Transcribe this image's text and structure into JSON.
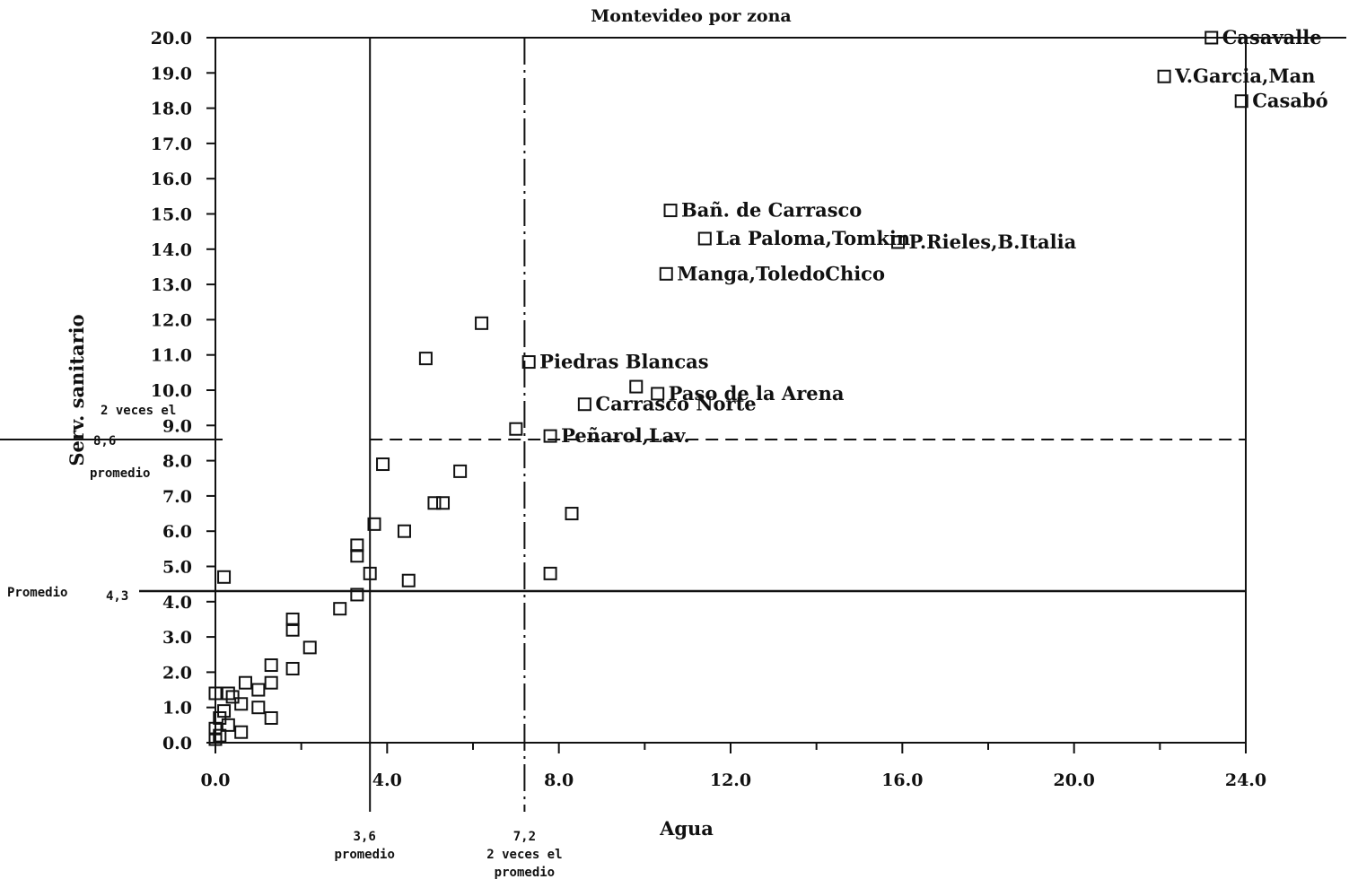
{
  "chart_data": {
    "type": "scatter",
    "title": "Montevideo por zona",
    "xlabel": "Agua",
    "ylabel": "Serv. sanitario",
    "xlim": [
      0,
      24
    ],
    "ylim": [
      0,
      20
    ],
    "x_ticks": [
      "0.0",
      "4.0",
      "8.0",
      "12.0",
      "16.0",
      "20.0",
      "24.0"
    ],
    "y_ticks": [
      "0.0",
      "1.0",
      "2.0",
      "3.0",
      "4.0",
      "5.0",
      "6.0",
      "7.0",
      "8.0",
      "9.0",
      "10.0",
      "11.0",
      "12.0",
      "13.0",
      "14.0",
      "15.0",
      "16.0",
      "17.0",
      "18.0",
      "19.0",
      "20.0"
    ],
    "grid": false,
    "marker": "square",
    "reference_lines": {
      "x_mean": {
        "value": 3.6,
        "style": "solid",
        "label": [
          "3,6",
          "promedio"
        ]
      },
      "x_double": {
        "value": 7.2,
        "style": "dashed",
        "label": [
          "7,2",
          "2 veces el",
          "promedio"
        ]
      },
      "y_mean": {
        "value": 4.3,
        "style": "solid",
        "label": [
          "Promedio",
          "4,3"
        ]
      },
      "y_double": {
        "value": 8.6,
        "style": "dashed",
        "label": [
          "2 veces el",
          "8,6",
          "promedio"
        ]
      }
    },
    "points": [
      {
        "x": 23.2,
        "y": 20.0,
        "label": "Casavalle"
      },
      {
        "x": 22.1,
        "y": 18.9,
        "label": "V.Garcia,Man"
      },
      {
        "x": 23.9,
        "y": 18.2,
        "label": "Casabó"
      },
      {
        "x": 10.6,
        "y": 15.1,
        "label": "Bañ. de Carrasco"
      },
      {
        "x": 11.4,
        "y": 14.3,
        "label": "La Paloma,Tomkin"
      },
      {
        "x": 15.9,
        "y": 14.2,
        "label": "P.Rieles,B.Italia"
      },
      {
        "x": 10.5,
        "y": 13.3,
        "label": "Manga,ToledoChico"
      },
      {
        "x": 7.3,
        "y": 10.8,
        "label": "Piedras Blancas"
      },
      {
        "x": 10.3,
        "y": 9.9,
        "label": "Paso de la Arena"
      },
      {
        "x": 8.6,
        "y": 9.6,
        "label": "Carrasco Norte"
      },
      {
        "x": 7.8,
        "y": 8.7,
        "label": "Peñarol,Lav."
      },
      {
        "x": 9.8,
        "y": 10.1
      },
      {
        "x": 6.2,
        "y": 11.9
      },
      {
        "x": 4.9,
        "y": 10.9
      },
      {
        "x": 7.0,
        "y": 8.9
      },
      {
        "x": 3.9,
        "y": 7.9
      },
      {
        "x": 5.7,
        "y": 7.7
      },
      {
        "x": 5.1,
        "y": 6.8
      },
      {
        "x": 5.3,
        "y": 6.8
      },
      {
        "x": 8.3,
        "y": 6.5
      },
      {
        "x": 3.7,
        "y": 6.2
      },
      {
        "x": 4.4,
        "y": 6.0
      },
      {
        "x": 3.3,
        "y": 5.6
      },
      {
        "x": 3.3,
        "y": 5.3
      },
      {
        "x": 3.6,
        "y": 4.8
      },
      {
        "x": 7.8,
        "y": 4.8
      },
      {
        "x": 4.5,
        "y": 4.6
      },
      {
        "x": 0.2,
        "y": 4.7
      },
      {
        "x": 3.3,
        "y": 4.2
      },
      {
        "x": 2.9,
        "y": 3.8
      },
      {
        "x": 1.8,
        "y": 3.5
      },
      {
        "x": 1.8,
        "y": 3.2
      },
      {
        "x": 2.2,
        "y": 2.7
      },
      {
        "x": 1.3,
        "y": 2.2
      },
      {
        "x": 1.8,
        "y": 2.1
      },
      {
        "x": 1.3,
        "y": 1.7
      },
      {
        "x": 0.7,
        "y": 1.7
      },
      {
        "x": 1.0,
        "y": 1.5
      },
      {
        "x": 0.0,
        "y": 1.4
      },
      {
        "x": 0.3,
        "y": 1.4
      },
      {
        "x": 0.4,
        "y": 1.3
      },
      {
        "x": 0.6,
        "y": 1.1
      },
      {
        "x": 1.0,
        "y": 1.0
      },
      {
        "x": 0.2,
        "y": 0.9
      },
      {
        "x": 0.1,
        "y": 0.7
      },
      {
        "x": 1.3,
        "y": 0.7
      },
      {
        "x": 0.3,
        "y": 0.5
      },
      {
        "x": 0.0,
        "y": 0.4
      },
      {
        "x": 0.6,
        "y": 0.3
      },
      {
        "x": 0.1,
        "y": 0.2
      },
      {
        "x": 0.0,
        "y": 0.1
      }
    ]
  }
}
